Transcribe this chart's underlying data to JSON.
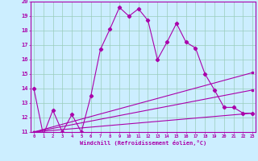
{
  "xlabel": "Windchill (Refroidissement éolien,°C)",
  "bg_color": "#cceeff",
  "line_color": "#aa00aa",
  "grid_color": "#99ccbb",
  "font_color": "#aa00aa",
  "xmin": 0,
  "xmax": 23,
  "ymin": 11,
  "ymax": 20,
  "line1_x": [
    0,
    1,
    2,
    3,
    4,
    5,
    6,
    7,
    8,
    9,
    10,
    11,
    12,
    13,
    14,
    15,
    16,
    17,
    18,
    19,
    20,
    21,
    22,
    23
  ],
  "line1_y": [
    14.0,
    10.8,
    12.5,
    11.0,
    12.2,
    11.0,
    13.5,
    16.7,
    18.1,
    19.6,
    19.0,
    19.5,
    18.7,
    16.0,
    17.2,
    18.5,
    17.2,
    16.8,
    15.0,
    13.9,
    12.7,
    12.7,
    12.3,
    12.3
  ],
  "line2_x": [
    0,
    23
  ],
  "line2_y": [
    11.0,
    15.1
  ],
  "line3_x": [
    0,
    23
  ],
  "line3_y": [
    11.0,
    13.9
  ],
  "line4_x": [
    0,
    23
  ],
  "line4_y": [
    11.0,
    12.3
  ]
}
